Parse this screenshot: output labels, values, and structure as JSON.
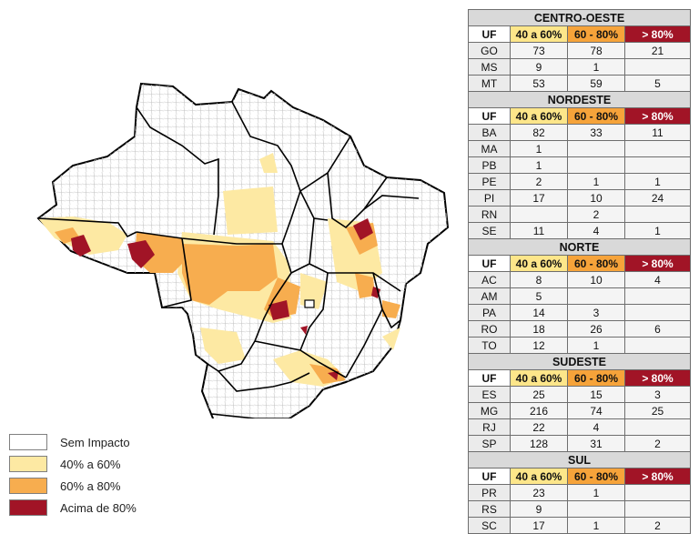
{
  "colors": {
    "sem_impacto": "#ffffff",
    "40_60": "#fde9a3",
    "60_80": "#f7ad4f",
    "acima_80": "#a11426",
    "border_state": "#000000",
    "border_muni": "#b8b8b8"
  },
  "legend": [
    {
      "label": "Sem Impacto",
      "color_key": "sem_impacto"
    },
    {
      "label": "40% a 60%",
      "color_key": "40_60"
    },
    {
      "label": "60% a 80%",
      "color_key": "60_80"
    },
    {
      "label": "Acima de 80%",
      "color_key": "acima_80"
    }
  ],
  "table_header": {
    "uf": "UF",
    "c1": "40 a 60%",
    "c2": "60 - 80%",
    "c3": "> 80%"
  },
  "regions": [
    {
      "name": "CENTRO-OESTE",
      "rows": [
        {
          "uf": "GO",
          "c1": "73",
          "c2": "78",
          "c3": "21"
        },
        {
          "uf": "MS",
          "c1": "9",
          "c2": "1",
          "c3": ""
        },
        {
          "uf": "MT",
          "c1": "53",
          "c2": "59",
          "c3": "5"
        }
      ]
    },
    {
      "name": "NORDESTE",
      "rows": [
        {
          "uf": "BA",
          "c1": "82",
          "c2": "33",
          "c3": "11"
        },
        {
          "uf": "MA",
          "c1": "1",
          "c2": "",
          "c3": ""
        },
        {
          "uf": "PB",
          "c1": "1",
          "c2": "",
          "c3": ""
        },
        {
          "uf": "PE",
          "c1": "2",
          "c2": "1",
          "c3": "1"
        },
        {
          "uf": "PI",
          "c1": "17",
          "c2": "10",
          "c3": "24"
        },
        {
          "uf": "RN",
          "c1": "",
          "c2": "2",
          "c3": ""
        },
        {
          "uf": "SE",
          "c1": "11",
          "c2": "4",
          "c3": "1"
        }
      ]
    },
    {
      "name": "NORTE",
      "rows": [
        {
          "uf": "AC",
          "c1": "8",
          "c2": "10",
          "c3": "4"
        },
        {
          "uf": "AM",
          "c1": "5",
          "c2": "",
          "c3": ""
        },
        {
          "uf": "PA",
          "c1": "14",
          "c2": "3",
          "c3": ""
        },
        {
          "uf": "RO",
          "c1": "18",
          "c2": "26",
          "c3": "6"
        },
        {
          "uf": "TO",
          "c1": "12",
          "c2": "1",
          "c3": ""
        }
      ]
    },
    {
      "name": "SUDESTE",
      "rows": [
        {
          "uf": "ES",
          "c1": "25",
          "c2": "15",
          "c3": "3"
        },
        {
          "uf": "MG",
          "c1": "216",
          "c2": "74",
          "c3": "25"
        },
        {
          "uf": "RJ",
          "c1": "22",
          "c2": "4",
          "c3": ""
        },
        {
          "uf": "SP",
          "c1": "128",
          "c2": "31",
          "c3": "2"
        }
      ]
    },
    {
      "name": "SUL",
      "rows": [
        {
          "uf": "PR",
          "c1": "23",
          "c2": "1",
          "c3": ""
        },
        {
          "uf": "RS",
          "c1": "9",
          "c2": "",
          "c3": ""
        },
        {
          "uf": "SC",
          "c1": "17",
          "c2": "1",
          "c3": "2"
        }
      ]
    }
  ]
}
